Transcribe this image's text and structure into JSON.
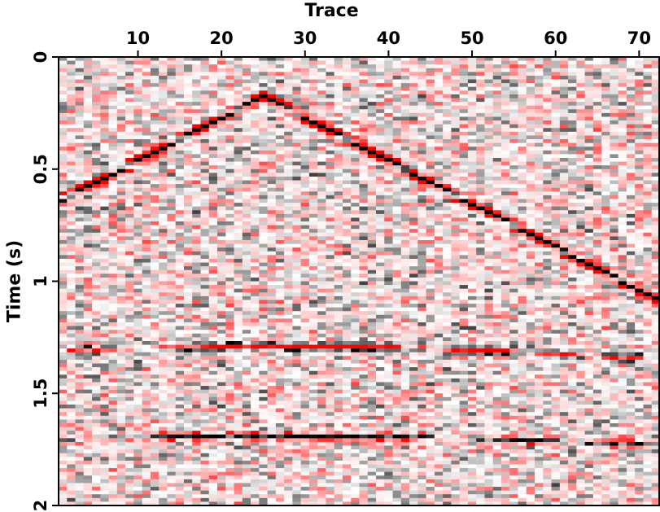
{
  "chart_data": {
    "type": "heatmap",
    "subtype": "seismic-gather",
    "xlabel": "Trace",
    "ylabel": "Time (s)",
    "x_axis_position": "top",
    "xlim": [
      1,
      72
    ],
    "ylim": [
      0,
      2
    ],
    "y_inverted": true,
    "x_ticks": [
      10,
      20,
      30,
      40,
      50,
      60,
      70
    ],
    "y_ticks": [
      0,
      0.5,
      1,
      1.5,
      2
    ],
    "y_tick_labels": [
      "0",
      "0.5",
      "1",
      "1.5",
      "2"
    ],
    "trace_count": 72,
    "time_samples": 120,
    "noise": "random",
    "colormap": {
      "negative": "#ff0000",
      "zero": "#ffffff",
      "positive": "#000000"
    },
    "events": [
      {
        "kind": "direct-wave",
        "shape": "linear-V",
        "apex_trace": 25,
        "apex_time_s": 0.18,
        "slope_s_per_trace": 0.0192,
        "strength": 2.2,
        "limbs": "negative-lobe-leading, positive-lobe-center"
      },
      {
        "kind": "reflection",
        "shape": "hyperbola",
        "apex_trace": 28,
        "t0_s": 1.29,
        "velocity_traces_per_s": 108,
        "polarity": "negative",
        "strength": 1.1
      },
      {
        "kind": "reflection",
        "shape": "hyperbola",
        "apex_trace": 27,
        "t0_s": 1.69,
        "velocity_traces_per_s": 118,
        "polarity": "positive",
        "strength": 0.95
      }
    ]
  }
}
